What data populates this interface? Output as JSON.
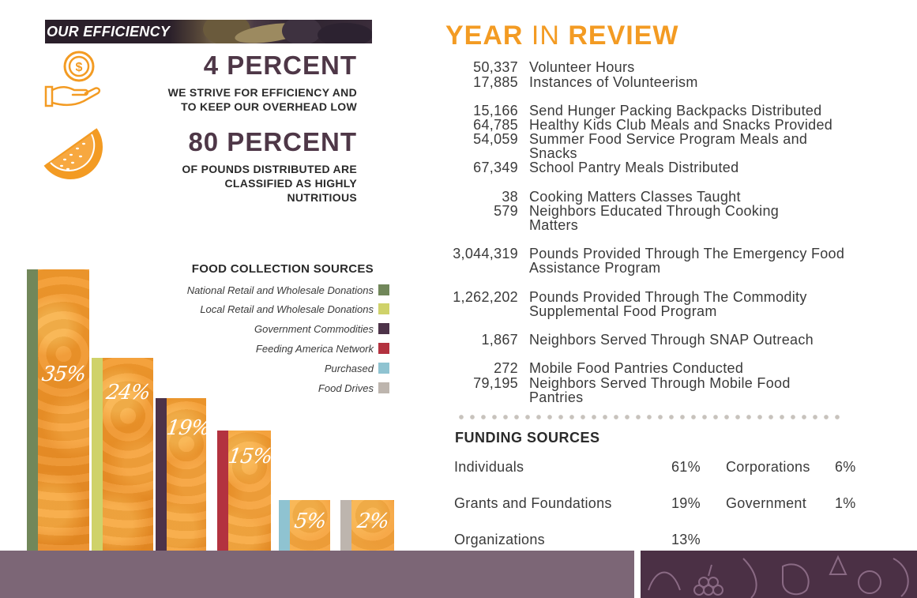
{
  "efficiency": {
    "banner_title": "OUR EFFICIENCY",
    "stats": [
      {
        "icon": "hand-coin-icon",
        "value": "4 PERCENT",
        "description_lines": [
          "WE STRIVE FOR EFFICIENCY AND",
          "TO KEEP OUR OVERHEAD LOW"
        ]
      },
      {
        "icon": "orange-slice-icon",
        "value": "80 PERCENT",
        "description_lines": [
          "OF POUNDS DISTRIBUTED ARE",
          "CLASSIFIED AS HIGHLY",
          "NUTRITIOUS"
        ]
      }
    ],
    "accent_color": "#f39b23"
  },
  "chart_data": {
    "type": "bar",
    "title": "FOOD COLLECTION SOURCES",
    "categories": [
      "National Retail and Wholesale Donations",
      "Local Retail and Wholesale Donations",
      "Government Commodities",
      "Feeding America Network",
      "Purchased",
      "Food Drives"
    ],
    "values": [
      35,
      24,
      19,
      15,
      5,
      2
    ],
    "value_labels": [
      "35%",
      "24%",
      "19%",
      "15%",
      "5%",
      "2%"
    ],
    "colors": [
      "#71875a",
      "#cfd26a",
      "#4d3349",
      "#b3323f",
      "#8fc3d1",
      "#bdb5ae"
    ],
    "ylim": [
      0,
      35
    ],
    "legend_position": "top-right"
  },
  "year_in_review": {
    "title_part1": "YEAR",
    "title_part2": "IN",
    "title_part3": "REVIEW",
    "items": [
      {
        "number": "50,337",
        "label": "Volunteer Hours"
      },
      {
        "number": "17,885",
        "label": "Instances of Volunteerism"
      },
      {
        "number": "15,166",
        "label": "Send Hunger Packing Backpacks Distributed"
      },
      {
        "number": "64,785",
        "label": "Healthy Kids Club Meals and Snacks Provided"
      },
      {
        "number": "54,059",
        "label": "Summer Food Service Program Meals and Snacks"
      },
      {
        "number": "67,349",
        "label": "School Pantry Meals Distributed"
      },
      {
        "number": "38",
        "label": "Cooking Matters Classes Taught"
      },
      {
        "number": "579",
        "label": "Neighbors Educated Through Cooking Matters"
      },
      {
        "number": "3,044,319",
        "label": "Pounds Provided Through The Emergency Food Assistance Program"
      },
      {
        "number": "1,262,202",
        "label": "Pounds Provided Through The Commodity Supplemental Food Program"
      },
      {
        "number": "1,867",
        "label": "Neighbors Served Through SNAP Outreach"
      },
      {
        "number": "272",
        "label": "Mobile Food Pantries Conducted"
      },
      {
        "number": "79,195",
        "label": "Neighbors Served Through Mobile Food Pantries"
      }
    ]
  },
  "funding": {
    "title": "FUNDING SOURCES",
    "sources": [
      {
        "name": "Individuals",
        "percent": "61%"
      },
      {
        "name": "Grants and Foundations",
        "percent": "19%"
      },
      {
        "name": "Organizations",
        "percent": "13%"
      },
      {
        "name": "Corporations",
        "percent": "6%"
      },
      {
        "name": "Government",
        "percent": "1%"
      }
    ]
  },
  "footer": {
    "left_color": "#7c6676",
    "right_color": "#4b3045"
  }
}
